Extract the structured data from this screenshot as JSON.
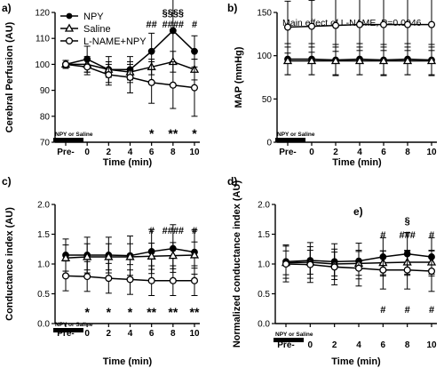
{
  "chart_data": [
    {
      "type": "line",
      "panel_label": "a)",
      "title": "",
      "xlabel": "Time (min)",
      "ylabel": "Cerebral Perfusion (AU)",
      "ylim": [
        70,
        120
      ],
      "yticks": [
        "70",
        "80",
        "90",
        "100",
        "110",
        "120"
      ],
      "categories": [
        "Pre-",
        "0",
        "2",
        "4",
        "6",
        "8",
        "10"
      ],
      "bar_label": "NPY or Saline",
      "legend": "top-left",
      "series": [
        {
          "name": "NPY",
          "marker": "circle-filled",
          "values": [
            100,
            102,
            98,
            98,
            105,
            113,
            105
          ],
          "err": [
            1.5,
            5,
            5,
            5,
            7,
            12,
            6
          ]
        },
        {
          "name": "Saline",
          "marker": "triangle-open",
          "values": [
            100,
            100,
            98,
            97,
            99,
            101,
            98
          ],
          "err": [
            1.5,
            3,
            3,
            3,
            3,
            4,
            4
          ]
        },
        {
          "name": "L-NAME+NPY",
          "marker": "circle-open",
          "values": [
            100,
            99,
            96,
            95,
            93,
            92,
            91
          ],
          "err": [
            1.5,
            3,
            4,
            6,
            8,
            9,
            11
          ]
        }
      ],
      "annotations_top": [
        {
          "row": 0,
          "x": "8",
          "text": "§§§§"
        },
        {
          "row": 1,
          "x": "6",
          "text": "##"
        },
        {
          "row": 1,
          "x": "8",
          "text": "####"
        },
        {
          "row": 1,
          "x": "10",
          "text": "#"
        }
      ],
      "annotations_bottom": [
        {
          "x": "6",
          "text": "*"
        },
        {
          "x": "8",
          "text": "**"
        },
        {
          "x": "10",
          "text": "*"
        }
      ]
    },
    {
      "type": "line",
      "panel_label": "b)",
      "title": "Main effect of L-NAME, P=0.0046",
      "xlabel": "Time (min)",
      "ylabel": "MAP (mmHg)",
      "ylim": [
        0,
        150
      ],
      "yticks": [
        "0",
        "50",
        "100",
        "150"
      ],
      "categories": [
        "Pre-",
        "0",
        "2",
        "4",
        "6",
        "8",
        "10"
      ],
      "bar_label": "NPY or Saline",
      "series": [
        {
          "marker": "circle-filled",
          "values": [
            96,
            96,
            95,
            96,
            95,
            96,
            95
          ],
          "err": [
            18,
            18,
            18,
            18,
            18,
            18,
            18
          ]
        },
        {
          "marker": "triangle-open",
          "values": [
            94,
            94,
            94,
            94,
            94,
            94,
            94
          ],
          "err": [
            16,
            16,
            16,
            16,
            16,
            16,
            16
          ]
        },
        {
          "marker": "circle-open",
          "values": [
            133,
            134,
            135,
            136,
            136,
            136,
            136
          ],
          "err": [
            30,
            30,
            30,
            30,
            30,
            30,
            30
          ]
        }
      ]
    },
    {
      "type": "line",
      "panel_label": "c)",
      "title": "",
      "xlabel": "Time (min)",
      "ylabel": "Conductance index (AU)",
      "ylim": [
        0,
        2.0
      ],
      "yticks": [
        "0.0",
        "0.5",
        "1.0",
        "1.5",
        "2.0"
      ],
      "categories": [
        "Pre-",
        "0",
        "2",
        "4",
        "6",
        "8",
        "10"
      ],
      "bar_label": "NPY or Saline",
      "series": [
        {
          "marker": "circle-filled",
          "values": [
            1.15,
            1.15,
            1.15,
            1.14,
            1.21,
            1.26,
            1.2
          ],
          "err": [
            0.27,
            0.3,
            0.3,
            0.33,
            0.37,
            0.4,
            0.37
          ]
        },
        {
          "marker": "triangle-open",
          "values": [
            1.1,
            1.12,
            1.12,
            1.12,
            1.13,
            1.14,
            1.15
          ],
          "err": [
            0.22,
            0.22,
            0.22,
            0.22,
            0.22,
            0.22,
            0.22
          ]
        },
        {
          "marker": "circle-open",
          "values": [
            0.8,
            0.79,
            0.76,
            0.74,
            0.72,
            0.72,
            0.72
          ],
          "err": [
            0.25,
            0.25,
            0.25,
            0.25,
            0.25,
            0.25,
            0.25
          ]
        }
      ],
      "annotations_top": [
        {
          "row": 1,
          "x": "6",
          "text": "#"
        },
        {
          "row": 1,
          "x": "8",
          "text": "####"
        },
        {
          "row": 1,
          "x": "10",
          "text": "#"
        }
      ],
      "annotations_bottom": [
        {
          "x": "0",
          "text": "*"
        },
        {
          "x": "2",
          "text": "*"
        },
        {
          "x": "4",
          "text": "*"
        },
        {
          "x": "6",
          "text": "**"
        },
        {
          "x": "8",
          "text": "**"
        },
        {
          "x": "10",
          "text": "**"
        }
      ]
    },
    {
      "type": "line",
      "panel_label": "d)",
      "extra_label": "e)",
      "title": "",
      "xlabel": "Time (min)",
      "ylabel": "Normalized conductance index (AU)",
      "ylim": [
        0,
        2.0
      ],
      "yticks": [
        "0.0",
        "0.5",
        "1.0",
        "1.5",
        "2.0"
      ],
      "categories": [
        "Pre-",
        "0",
        "2",
        "4",
        "6",
        "8",
        "10"
      ],
      "bar_label": "NPY or Saline",
      "series": [
        {
          "marker": "circle-filled",
          "values": [
            1.04,
            1.06,
            1.04,
            1.05,
            1.12,
            1.17,
            1.12
          ],
          "err": [
            0.28,
            0.3,
            0.3,
            0.3,
            0.32,
            0.36,
            0.32
          ]
        },
        {
          "marker": "triangle-open",
          "values": [
            1.02,
            1.03,
            1.0,
            1.01,
            1.02,
            1.03,
            1.03
          ],
          "err": [
            0.2,
            0.2,
            0.2,
            0.2,
            0.2,
            0.2,
            0.2
          ]
        },
        {
          "marker": "circle-open",
          "values": [
            1.0,
            0.99,
            0.95,
            0.93,
            0.9,
            0.9,
            0.88
          ],
          "err": [
            0.3,
            0.3,
            0.3,
            0.3,
            0.32,
            0.32,
            0.34
          ]
        }
      ],
      "annotations_top": [
        {
          "row": 0,
          "x": "8",
          "text": "§"
        },
        {
          "row": 1,
          "x": "6",
          "text": "#"
        },
        {
          "row": 1,
          "x": "8",
          "text": "###"
        },
        {
          "row": 1,
          "x": "10",
          "text": "#"
        }
      ],
      "annotations_bottom": [
        {
          "x": "6",
          "text": "#"
        },
        {
          "x": "8",
          "text": "#"
        },
        {
          "x": "10",
          "text": "#"
        }
      ]
    }
  ]
}
